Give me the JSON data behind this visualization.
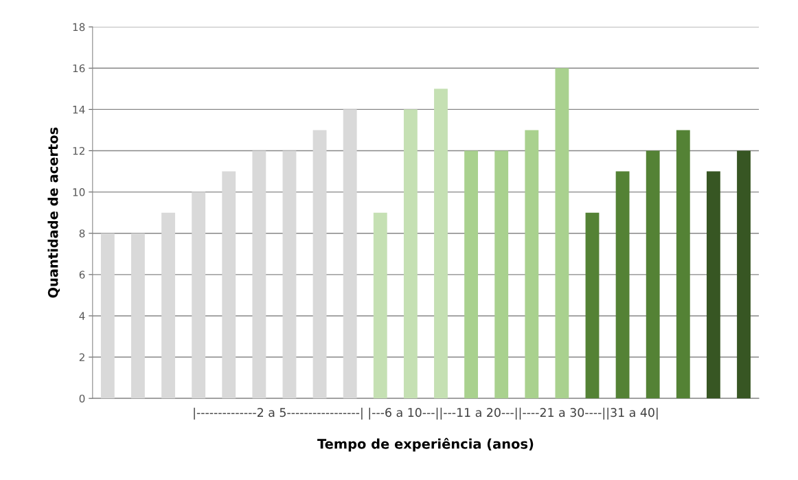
{
  "chart_data": {
    "type": "bar",
    "xlabel": "Tempo de experiência (anos)",
    "ylabel": "Quantidade de acertos",
    "categories": [
      null,
      null,
      null,
      null,
      null,
      null,
      null,
      null,
      null,
      null,
      null,
      null,
      null,
      null,
      null,
      null,
      null,
      null,
      null,
      null,
      null,
      null
    ],
    "values": [
      8,
      8,
      9,
      10,
      11,
      12,
      12,
      13,
      14,
      9,
      14,
      15,
      12,
      12,
      13,
      16,
      9,
      11,
      12,
      13,
      11,
      12
    ],
    "colors": [
      "#d9d9d9",
      "#d9d9d9",
      "#d9d9d9",
      "#d9d9d9",
      "#d9d9d9",
      "#d9d9d9",
      "#d9d9d9",
      "#d9d9d9",
      "#d9d9d9",
      "#c5e0b3",
      "#c5e0b3",
      "#c5e0b3",
      "#a9d18e",
      "#a9d18e",
      "#a9d18e",
      "#a9d18e",
      "#548235",
      "#548235",
      "#548235",
      "#548235",
      "#375623",
      "#375623"
    ],
    "ylim": [
      0,
      18
    ],
    "yticks": [
      0,
      2,
      4,
      6,
      8,
      10,
      12,
      14,
      16,
      18
    ],
    "grid": "y",
    "annotations": [
      "|--------------2 a 5-----------------| |---6 a 10---||---11 a 20---||----21 a 30----||31 a 40|"
    ]
  }
}
